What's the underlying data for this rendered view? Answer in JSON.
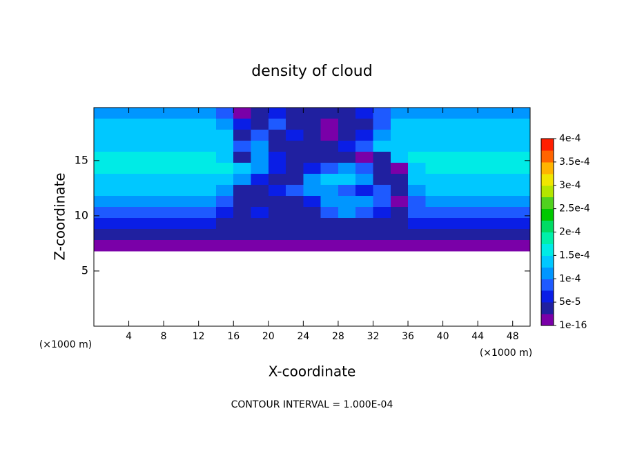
{
  "chart_data": {
    "type": "contourf",
    "title": "density of cloud",
    "xlabel": "X-coordinate",
    "ylabel": "Z-coordinate",
    "x_unit": "(×1000 m)",
    "footnote": "CONTOUR INTERVAL = 1.000E-04",
    "xlim": [
      0,
      50
    ],
    "ylim": [
      0,
      19.8
    ],
    "xticks": [
      4,
      8,
      12,
      16,
      20,
      24,
      28,
      32,
      36,
      40,
      44,
      48
    ],
    "yticks": [
      5,
      10,
      15
    ],
    "x": [
      1,
      3,
      5,
      7,
      9,
      11,
      13,
      15,
      17,
      19,
      21,
      23,
      25,
      27,
      29,
      31,
      33,
      35,
      37,
      39,
      41,
      43,
      45,
      47,
      49
    ],
    "z": [
      19.3,
      18.3,
      17.3,
      16.3,
      15.3,
      14.3,
      13.3,
      12.3,
      11.3,
      10.3,
      9.3,
      8.3,
      7.3
    ],
    "values": [
      [
        0.00011,
        0.00011,
        0.00011,
        0.00011,
        0.00011,
        0.00011,
        0.00011,
        0.0001,
        1e-05,
        4e-05,
        6e-05,
        5e-05,
        3e-05,
        3e-05,
        4e-05,
        6e-05,
        9e-05,
        0.00011,
        0.00011,
        0.00011,
        0.00011,
        0.00011,
        0.00011,
        0.00011,
        0.00011
      ],
      [
        0.00013,
        0.00013,
        0.00013,
        0.00013,
        0.00013,
        0.00013,
        0.00013,
        0.00012,
        6e-05,
        3e-05,
        8e-05,
        5e-05,
        4e-05,
        2e-05,
        3e-05,
        5e-05,
        9e-05,
        0.00013,
        0.00013,
        0.00013,
        0.00013,
        0.00013,
        0.00013,
        0.00013,
        0.00013
      ],
      [
        0.000145,
        0.000145,
        0.000145,
        0.000145,
        0.000145,
        0.000145,
        0.000145,
        0.00013,
        5e-05,
        8e-05,
        4e-05,
        6e-05,
        3e-05,
        1.5e-05,
        4e-05,
        7e-05,
        0.00012,
        0.000145,
        0.000145,
        0.000145,
        0.000145,
        0.000145,
        0.000145,
        0.000145,
        0.000145
      ],
      [
        0.00015,
        0.00015,
        0.00015,
        0.00015,
        0.00015,
        0.00015,
        0.00015,
        0.00014,
        0.0001,
        0.00011,
        5e-05,
        4e-05,
        3e-05,
        4e-05,
        6e-05,
        9e-05,
        0.00013,
        0.00015,
        0.00015,
        0.00015,
        0.00015,
        0.00015,
        0.00015,
        0.00015,
        0.00015
      ],
      [
        0.00016,
        0.00016,
        0.00016,
        0.00016,
        0.00016,
        0.00016,
        0.00016,
        0.00015,
        3e-05,
        0.00012,
        6e-05,
        3e-05,
        4e-05,
        5e-05,
        4e-05,
        2e-05,
        5e-05,
        0.00013,
        0.00016,
        0.00016,
        0.00016,
        0.00016,
        0.00016,
        0.00016,
        0.00016
      ],
      [
        0.00016,
        0.00016,
        0.00016,
        0.00016,
        0.00016,
        0.00016,
        0.00016,
        0.000155,
        0.00014,
        0.00012,
        7e-05,
        4e-05,
        6e-05,
        0.0001,
        0.00011,
        0.0001,
        4e-05,
        2e-05,
        0.00015,
        0.00016,
        0.00016,
        0.00016,
        0.00016,
        0.00016,
        0.00016
      ],
      [
        0.00015,
        0.00015,
        0.00015,
        0.00015,
        0.00015,
        0.00015,
        0.00015,
        0.00014,
        0.00011,
        6e-05,
        3e-05,
        5e-05,
        0.00012,
        0.00013,
        0.000135,
        0.000125,
        5e-05,
        3e-05,
        0.00014,
        0.00015,
        0.00015,
        0.00015,
        0.00015,
        0.00015,
        0.00015
      ],
      [
        0.000135,
        0.000135,
        0.000135,
        0.000135,
        0.000135,
        0.000135,
        0.000135,
        0.00012,
        5e-05,
        4e-05,
        6e-05,
        8e-05,
        0.00011,
        0.000115,
        9e-05,
        7e-05,
        8e-05,
        3e-05,
        0.00012,
        0.000135,
        0.000135,
        0.000135,
        0.000135,
        0.000135,
        0.000135
      ],
      [
        0.000115,
        0.000115,
        0.000115,
        0.000115,
        0.000115,
        0.000115,
        0.000115,
        9e-05,
        4e-05,
        3e-05,
        5e-05,
        4e-05,
        6e-05,
        0.00011,
        0.00012,
        0.000115,
        8e-05,
        2e-05,
        9e-05,
        0.000115,
        0.000115,
        0.000115,
        0.000115,
        0.000115,
        0.000115
      ],
      [
        0.0001,
        0.0001,
        0.0001,
        0.0001,
        0.0001,
        0.0001,
        0.0001,
        7e-05,
        5e-05,
        6e-05,
        3e-05,
        4e-05,
        5e-05,
        8e-05,
        0.000105,
        9e-05,
        6e-05,
        4e-05,
        8e-05,
        0.0001,
        0.0001,
        0.0001,
        0.0001,
        0.0001,
        0.0001
      ],
      [
        7e-05,
        7e-05,
        7e-05,
        7e-05,
        7e-05,
        7e-05,
        7e-05,
        5e-05,
        3e-05,
        4e-05,
        3e-05,
        3e-05,
        4e-05,
        4e-05,
        5e-05,
        5e-05,
        4e-05,
        5e-05,
        7e-05,
        7e-05,
        7e-05,
        7e-05,
        7e-05,
        7e-05,
        7e-05
      ],
      [
        4e-05,
        4e-05,
        4e-05,
        4e-05,
        4e-05,
        4e-05,
        4e-05,
        4e-05,
        3e-05,
        3e-05,
        3e-05,
        3e-05,
        3e-05,
        3e-05,
        3e-05,
        3e-05,
        3e-05,
        3e-05,
        4e-05,
        4e-05,
        4e-05,
        4e-05,
        4e-05,
        4e-05,
        4e-05
      ],
      [
        1.5e-05,
        1.5e-05,
        1.5e-05,
        1.5e-05,
        1.5e-05,
        1.5e-05,
        1.5e-05,
        1.5e-05,
        1e-05,
        1e-05,
        1e-05,
        1e-05,
        1e-05,
        1e-05,
        1e-05,
        1e-05,
        1e-05,
        1e-05,
        1.5e-05,
        1.5e-05,
        1.5e-05,
        1.5e-05,
        1.5e-05,
        1.5e-05,
        1.5e-05
      ]
    ],
    "colorbar": {
      "ticks": [
        {
          "value": 1e-16,
          "label": "1e-16"
        },
        {
          "value": 5e-05,
          "label": "5e-5"
        },
        {
          "value": 0.0001,
          "label": "1e-4"
        },
        {
          "value": 0.00015,
          "label": "1.5e-4"
        },
        {
          "value": 0.0002,
          "label": "2e-4"
        },
        {
          "value": 0.00025,
          "label": "2.5e-4"
        },
        {
          "value": 0.0003,
          "label": "3e-4"
        },
        {
          "value": 0.00035,
          "label": "3.5e-4"
        },
        {
          "value": 0.0004,
          "label": "4e-4"
        }
      ],
      "colors": [
        "#7a00a8",
        "#2020a0",
        "#0a1ee6",
        "#1e5aff",
        "#0096ff",
        "#00c8ff",
        "#00ebe6",
        "#00f0aa",
        "#00dc64",
        "#00c800",
        "#50d21e",
        "#b4e600",
        "#f0e600",
        "#ffb400",
        "#ff6400",
        "#ff1e00"
      ]
    }
  }
}
